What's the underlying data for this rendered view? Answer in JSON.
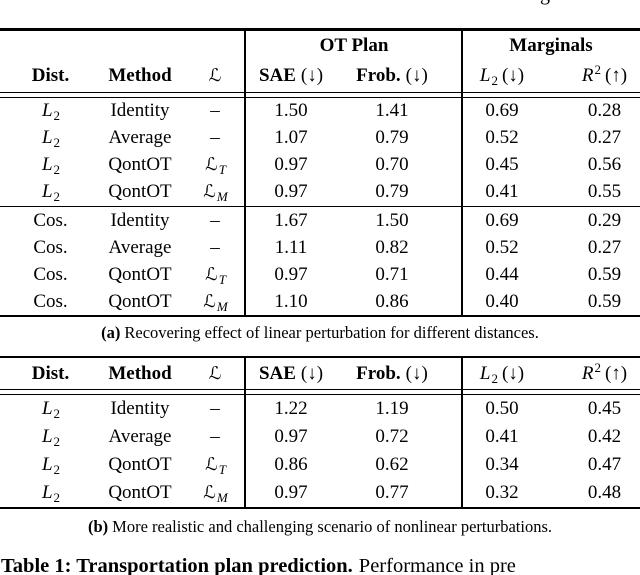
{
  "colors": {
    "background": "#ffffff",
    "text": "#000000",
    "rule": "#000000"
  },
  "top_fragment": {
    "char": "g"
  },
  "group_headers": {
    "ot_plan": "OT Plan",
    "marginals": "Marginals"
  },
  "columns": {
    "dist": "Dist.",
    "method": "Method",
    "loss": "ℒ",
    "sae": "SAE",
    "sae_dir": "(↓)",
    "frob": "Frob.",
    "frob_dir": "(↓)",
    "l2_base": "L",
    "l2_sub": "2",
    "l2_dir": "(↓)",
    "r2_base": "R",
    "r2_sup": "2",
    "r2_dir": "(↑)"
  },
  "table_a": {
    "caption_tag": "(a)",
    "caption_text": "Recovering effect of linear perturbation for different distances.",
    "rows": [
      {
        "dist_base": "L",
        "dist_sub": "2",
        "method": "Identity",
        "loss_base": "–",
        "loss_sub": "",
        "sae": "1.50",
        "frob": "1.41",
        "l2": "0.69",
        "r2": "0.28"
      },
      {
        "dist_base": "L",
        "dist_sub": "2",
        "method": "Average",
        "loss_base": "–",
        "loss_sub": "",
        "sae": "1.07",
        "frob": "0.79",
        "l2": "0.52",
        "r2": "0.27"
      },
      {
        "dist_base": "L",
        "dist_sub": "2",
        "method": "QontOT",
        "loss_base": "ℒ",
        "loss_sub": "T",
        "sae": "0.97",
        "frob": "0.70",
        "l2": "0.45",
        "r2": "0.56"
      },
      {
        "dist_base": "L",
        "dist_sub": "2",
        "method": "QontOT",
        "loss_base": "ℒ",
        "loss_sub": "M",
        "sae": "0.97",
        "frob": "0.79",
        "l2": "0.41",
        "r2": "0.55"
      },
      {
        "dist_base": "Cos.",
        "dist_sub": "",
        "method": "Identity",
        "loss_base": "–",
        "loss_sub": "",
        "sae": "1.67",
        "frob": "1.50",
        "l2": "0.69",
        "r2": "0.29"
      },
      {
        "dist_base": "Cos.",
        "dist_sub": "",
        "method": "Average",
        "loss_base": "–",
        "loss_sub": "",
        "sae": "1.11",
        "frob": "0.82",
        "l2": "0.52",
        "r2": "0.27"
      },
      {
        "dist_base": "Cos.",
        "dist_sub": "",
        "method": "QontOT",
        "loss_base": "ℒ",
        "loss_sub": "T",
        "sae": "0.97",
        "frob": "0.71",
        "l2": "0.44",
        "r2": "0.59"
      },
      {
        "dist_base": "Cos.",
        "dist_sub": "",
        "method": "QontOT",
        "loss_base": "ℒ",
        "loss_sub": "M",
        "sae": "1.10",
        "frob": "0.86",
        "l2": "0.40",
        "r2": "0.59"
      }
    ]
  },
  "table_b": {
    "caption_tag": "(b)",
    "caption_text": "More realistic and challenging scenario of nonlinear perturbations.",
    "rows": [
      {
        "dist_base": "L",
        "dist_sub": "2",
        "method": "Identity",
        "loss_base": "–",
        "loss_sub": "",
        "sae": "1.22",
        "frob": "1.19",
        "l2": "0.50",
        "r2": "0.45"
      },
      {
        "dist_base": "L",
        "dist_sub": "2",
        "method": "Average",
        "loss_base": "–",
        "loss_sub": "",
        "sae": "0.97",
        "frob": "0.72",
        "l2": "0.41",
        "r2": "0.42"
      },
      {
        "dist_base": "L",
        "dist_sub": "2",
        "method": "QontOT",
        "loss_base": "ℒ",
        "loss_sub": "T",
        "sae": "0.86",
        "frob": "0.62",
        "l2": "0.34",
        "r2": "0.47"
      },
      {
        "dist_base": "L",
        "dist_sub": "2",
        "method": "QontOT",
        "loss_base": "ℒ",
        "loss_sub": "M",
        "sae": "0.97",
        "frob": "0.77",
        "l2": "0.32",
        "r2": "0.48"
      }
    ]
  },
  "footer": {
    "bold": "Table 1: Transportation plan prediction.",
    "rest": "Performance in pre"
  }
}
